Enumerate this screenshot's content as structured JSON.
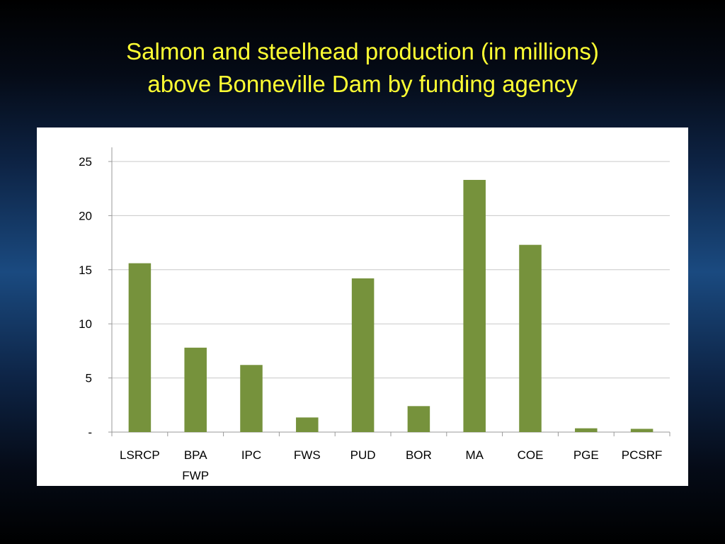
{
  "slide": {
    "title_line1": "Salmon and steelhead production (in millions)",
    "title_line2": "above Bonneville Dam by funding agency"
  },
  "colors": {
    "title": "#ffff33",
    "bar": "#76923c",
    "panel": "#ffffff",
    "grid": "#c8c8c8"
  },
  "chart_data": {
    "type": "bar",
    "title": "Salmon and steelhead production (in millions) above Bonneville Dam by funding agency",
    "xlabel": "",
    "ylabel": "",
    "categories": [
      "LSRCP",
      "BPA FWP",
      "IPC",
      "FWS",
      "PUD",
      "BOR",
      "MA",
      "COE",
      "PGE",
      "PCSRF"
    ],
    "category_label_lines": [
      [
        "LSRCP"
      ],
      [
        "BPA",
        "FWP"
      ],
      [
        "IPC"
      ],
      [
        "FWS"
      ],
      [
        "PUD"
      ],
      [
        "BOR"
      ],
      [
        "MA"
      ],
      [
        "COE"
      ],
      [
        "PGE"
      ],
      [
        "PCSRF"
      ]
    ],
    "values": [
      15.6,
      7.8,
      6.2,
      1.35,
      14.2,
      2.4,
      23.3,
      17.3,
      0.35,
      0.3
    ],
    "ylim": [
      0,
      25
    ],
    "yticks": [
      0,
      5,
      10,
      15,
      20,
      25
    ],
    "ytick_labels": [
      "-",
      "5",
      "10",
      "15",
      "20",
      "25"
    ],
    "grid": true,
    "legend": "none"
  }
}
